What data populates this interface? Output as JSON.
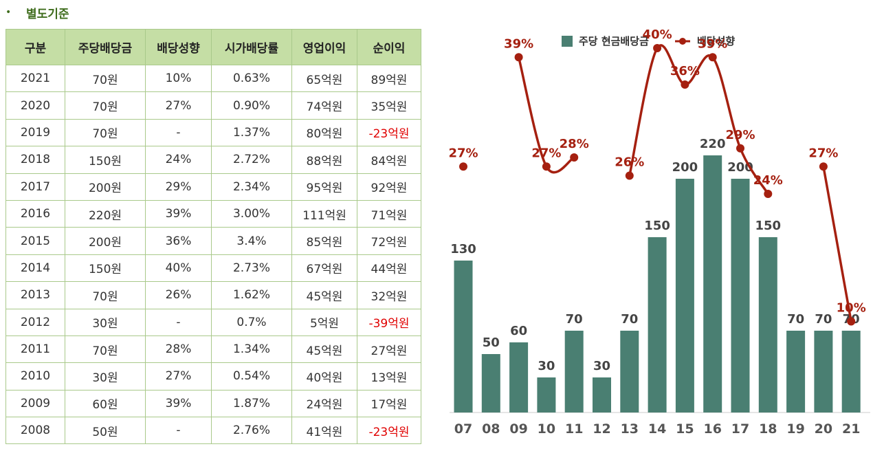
{
  "section": {
    "bullet": "•",
    "title": "별도기준"
  },
  "table": {
    "headers": [
      "구분",
      "주당배당금",
      "배당성향",
      "시가배당률",
      "영업이익",
      "순이익"
    ],
    "rows": [
      [
        "2021",
        "70원",
        "10%",
        "0.63%",
        "65억원",
        "89억원"
      ],
      [
        "2020",
        "70원",
        "27%",
        "0.90%",
        "74억원",
        "35억원"
      ],
      [
        "2019",
        "70원",
        "-",
        "1.37%",
        "80억원",
        "-23억원"
      ],
      [
        "2018",
        "150원",
        "24%",
        "2.72%",
        "88억원",
        "84억원"
      ],
      [
        "2017",
        "200원",
        "29%",
        "2.34%",
        "95억원",
        "92억원"
      ],
      [
        "2016",
        "220원",
        "39%",
        "3.00%",
        "111억원",
        "71억원"
      ],
      [
        "2015",
        "200원",
        "36%",
        "3.4%",
        "85억원",
        "72억원"
      ],
      [
        "2014",
        "150원",
        "40%",
        "2.73%",
        "67억원",
        "44억원"
      ],
      [
        "2013",
        "70원",
        "26%",
        "1.62%",
        "45억원",
        "32억원"
      ],
      [
        "2012",
        "30원",
        "-",
        "0.7%",
        "5억원",
        "-39억원"
      ],
      [
        "2011",
        "70원",
        "28%",
        "1.34%",
        "45억원",
        "27억원"
      ],
      [
        "2010",
        "30원",
        "27%",
        "0.54%",
        "40억원",
        "13억원"
      ],
      [
        "2009",
        "60원",
        "39%",
        "1.87%",
        "24억원",
        "17억원"
      ],
      [
        "2008",
        "50원",
        "-",
        "2.76%",
        "41억원",
        "-23억원"
      ]
    ],
    "negative_color": "#e00000"
  },
  "chart_data": {
    "type": "bar",
    "categories": [
      "07",
      "08",
      "09",
      "10",
      "11",
      "12",
      "13",
      "14",
      "15",
      "16",
      "17",
      "18",
      "19",
      "20",
      "21"
    ],
    "series": [
      {
        "name": "주당 현금배당금",
        "kind": "bar",
        "color": "#4a7f72",
        "values": [
          130,
          50,
          60,
          30,
          70,
          30,
          70,
          150,
          200,
          220,
          200,
          150,
          70,
          70,
          70
        ]
      },
      {
        "name": "배당성향",
        "kind": "line",
        "color": "#a52010",
        "unit": "%",
        "values": [
          27,
          null,
          39,
          27,
          28,
          null,
          26,
          40,
          36,
          39,
          29,
          24,
          null,
          27,
          10
        ]
      }
    ],
    "legend_position": "top-center",
    "grid": false
  }
}
